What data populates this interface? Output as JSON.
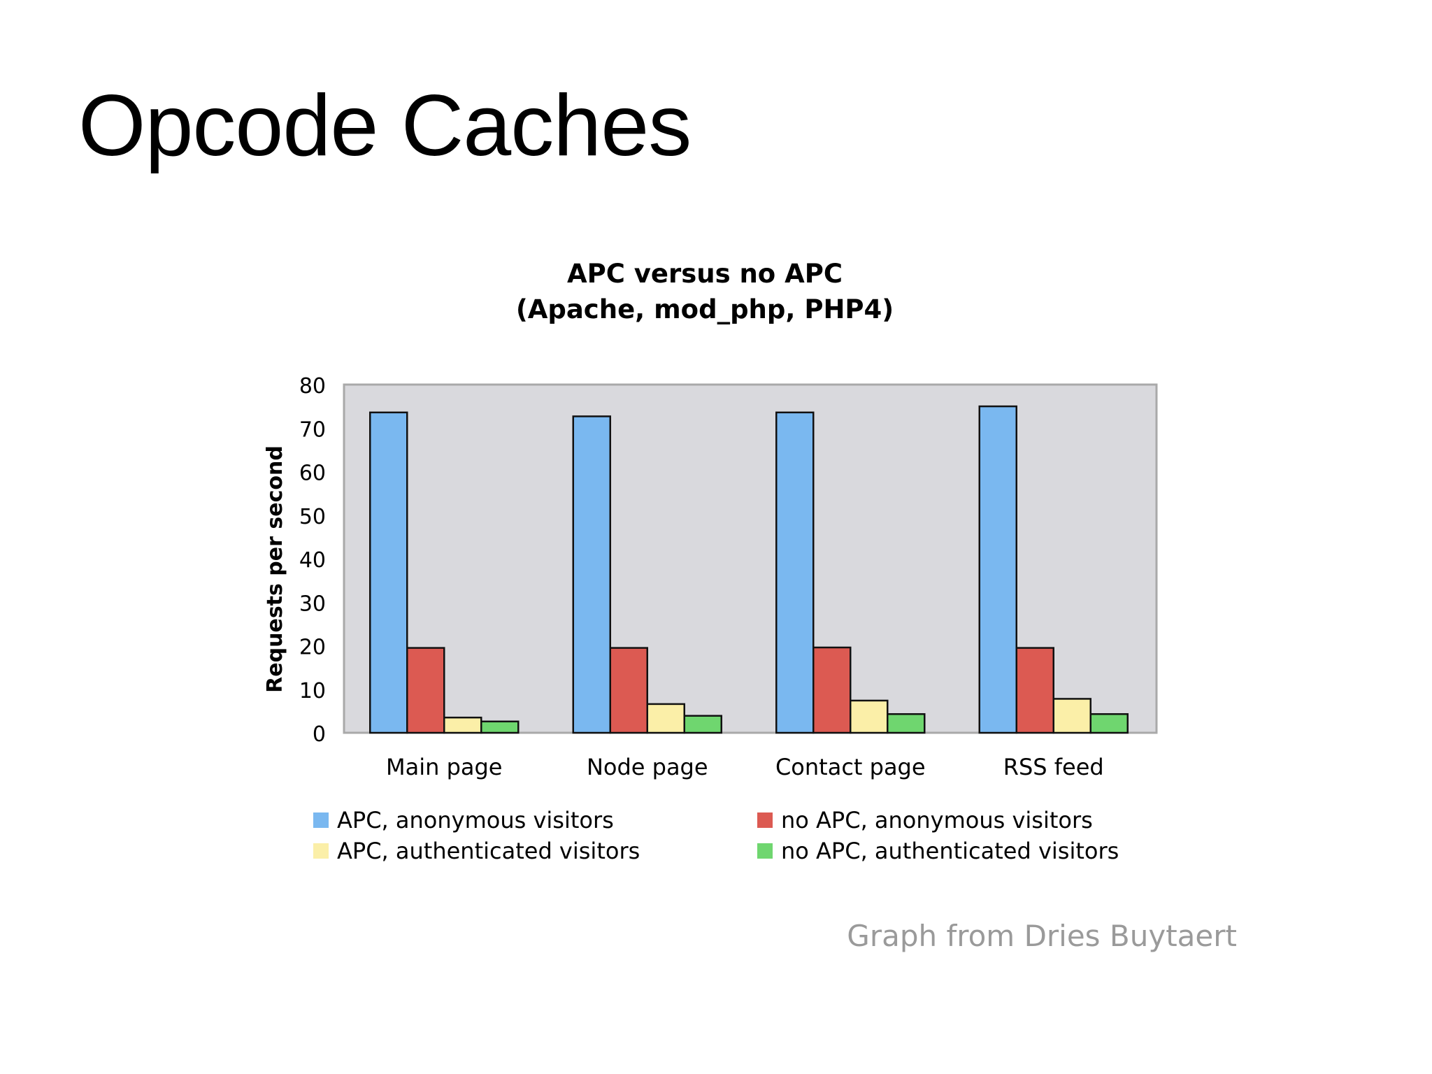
{
  "slide": {
    "title": "Opcode Caches",
    "credit": "Graph from Dries Buytaert"
  },
  "chart_data": {
    "type": "bar",
    "title": "APC versus no APC",
    "subtitle": "(Apache, mod_php, PHP4)",
    "xlabel": "",
    "ylabel": "Requests per second",
    "ylim": [
      0,
      80
    ],
    "yticks": [
      0,
      10,
      20,
      30,
      40,
      50,
      60,
      70,
      80
    ],
    "categories": [
      "Main page",
      "Node page",
      "Contact page",
      "RSS feed"
    ],
    "series": [
      {
        "name": "APC, anonymous visitors",
        "color": "#7ab8f0",
        "values": [
          73.6,
          72.7,
          73.6,
          75.0
        ]
      },
      {
        "name": "no APC, anonymous visitors",
        "color": "#dc5a52",
        "values": [
          19.5,
          19.5,
          19.6,
          19.5
        ]
      },
      {
        "name": "APC, authenticated visitors",
        "color": "#fbefa8",
        "values": [
          3.5,
          6.6,
          7.4,
          7.8
        ]
      },
      {
        "name": "no APC, authenticated visitors",
        "color": "#6fd66f",
        "values": [
          2.6,
          3.9,
          4.3,
          4.3
        ]
      }
    ],
    "grid": false,
    "plot_background": "#d9d9dd",
    "legend_position": "bottom"
  }
}
